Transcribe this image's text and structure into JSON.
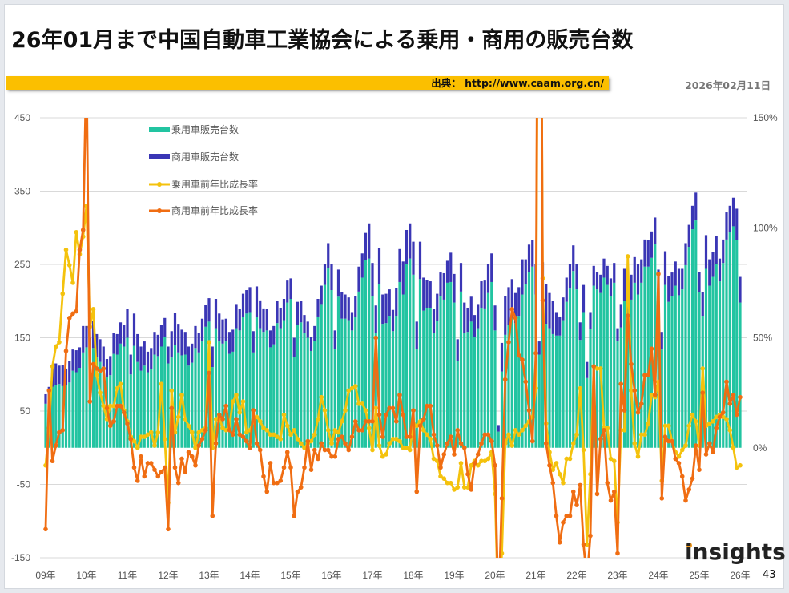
{
  "header": {
    "title": "26年01月まで中国自動車工業協会による乗用・商用の販売台数",
    "source": "出典： http://www.caam.org.cn/",
    "date": "2026年02月11日"
  },
  "footer": {
    "logo_text": "insights",
    "page_number": "43"
  },
  "colors": {
    "passenger_bar": "#22c4a1",
    "commercial_bar": "#3a36b5",
    "passenger_line": "#f4c20d",
    "commercial_line": "#f06d12",
    "source_bar": "#fbbf00"
  },
  "chart_data": {
    "type": "bar+line",
    "stacked_bars": true,
    "grid": true,
    "legend_position": "top-left",
    "legend": [
      "乗用車販売台数",
      "商用車販売台数",
      "乗用車前年比成長率",
      "商用車前年比成長率"
    ],
    "y_left": {
      "range": [
        -150,
        450
      ],
      "ticks": [
        "450",
        "350",
        "250",
        "150",
        "50",
        "-50",
        "-150"
      ]
    },
    "y_right": {
      "range_percent": [
        -50,
        150
      ],
      "ticks": [
        "150%",
        "100%",
        "50%",
        "0%"
      ]
    },
    "years": [
      {
        "label": "09年",
        "passenger": [
          60,
          70,
          83,
          86,
          87,
          84,
          86,
          89,
          105,
          103,
          109,
          130
        ],
        "commercial": [
          13,
          13,
          27,
          29,
          25,
          29,
          22,
          29,
          29,
          30,
          28,
          36
        ],
        "passenger_yoy": [
          -8,
          9,
          37,
          46,
          48,
          70,
          90,
          83,
          75,
          98,
          88,
          96
        ],
        "commercial_yoy": [
          -37,
          26,
          -6,
          1,
          7,
          8,
          44,
          59,
          61,
          62,
          90,
          99
        ]
      },
      {
        "label": "10年",
        "passenger": [
          137,
          117,
          136,
          123,
          117,
          108,
          97,
          99,
          128,
          127,
          142,
          138
        ],
        "commercial": [
          29,
          33,
          37,
          32,
          31,
          30,
          24,
          26,
          29,
          28,
          29,
          29
        ],
        "passenger_yoy": [
          110,
          55,
          63,
          33,
          25,
          19,
          13,
          19,
          19,
          27,
          29,
          17
        ],
        "commercial_yoy": [
          175,
          21,
          38,
          36,
          35,
          36,
          18,
          10,
          12,
          19,
          19,
          16
        ]
      },
      {
        "label": "11年",
        "passenger": [
          150,
          100,
          139,
          117,
          105,
          112,
          103,
          107,
          127,
          125,
          138,
          151
        ],
        "commercial": [
          39,
          27,
          44,
          38,
          33,
          33,
          28,
          29,
          31,
          29,
          30,
          26
        ],
        "passenger_yoy": [
          12,
          5,
          3,
          0,
          5,
          5,
          6,
          7,
          1,
          7,
          29,
          4
        ],
        "commercial_yoy": [
          11,
          4,
          -9,
          -15,
          -4,
          -13,
          -7,
          -7,
          -10,
          -13,
          -11,
          -9
        ]
      },
      {
        "label": "12年",
        "passenger": [
          115,
          123,
          140,
          130,
          126,
          127,
          112,
          116,
          136,
          130,
          145,
          165
        ],
        "commercial": [
          23,
          36,
          44,
          39,
          35,
          31,
          26,
          26,
          30,
          27,
          31,
          30
        ],
        "passenger_yoy": [
          -25,
          26,
          7,
          14,
          24,
          13,
          10,
          7,
          0,
          7,
          8,
          9
        ],
        "commercial_yoy": [
          -37,
          18,
          -9,
          -16,
          -5,
          -11,
          -2,
          -4,
          -8,
          1,
          4,
          8
        ]
      },
      {
        "label": "13年",
        "passenger": [
          172,
          110,
          163,
          145,
          142,
          145,
          128,
          131,
          163,
          160,
          178,
          183
        ],
        "commercial": [
          32,
          28,
          40,
          38,
          33,
          31,
          30,
          30,
          33,
          29,
          32,
          32
        ],
        "passenger_yoy": [
          48,
          0,
          13,
          14,
          9,
          8,
          10,
          21,
          24,
          16,
          21,
          7
        ],
        "commercial_yoy": [
          34,
          -31,
          2,
          15,
          13,
          19,
          8,
          6,
          13,
          6,
          5,
          3
        ]
      },
      {
        "label": "14年",
        "passenger": [
          185,
          130,
          178,
          163,
          158,
          160,
          137,
          141,
          170,
          163,
          174,
          198
        ],
        "commercial": [
          34,
          29,
          42,
          38,
          32,
          29,
          23,
          25,
          30,
          28,
          29,
          30
        ],
        "passenger_yoy": [
          8,
          12,
          14,
          12,
          9,
          8,
          6,
          6,
          5,
          4,
          15,
          10
        ],
        "commercial_yoy": [
          0,
          17,
          2,
          -1,
          -13,
          -20,
          -7,
          -16,
          -16,
          -15,
          -9,
          -2
        ]
      },
      {
        "label": "15年",
        "passenger": [
          203,
          124,
          167,
          171,
          157,
          150,
          132,
          146,
          179,
          196,
          222,
          245
        ],
        "commercial": [
          28,
          26,
          32,
          29,
          24,
          22,
          19,
          20,
          24,
          25,
          28,
          34
        ],
        "passenger_yoy": [
          6,
          8,
          4,
          2,
          0,
          2,
          3,
          6,
          13,
          23,
          17,
          8
        ],
        "commercial_yoy": [
          -9,
          -31,
          -20,
          -18,
          -9,
          3,
          -10,
          -1,
          -5,
          2,
          -1,
          -1
        ]
      },
      {
        "label": "16年",
        "passenger": [
          215,
          135,
          206,
          176,
          176,
          174,
          160,
          178,
          213,
          232,
          256,
          258
        ],
        "commercial": [
          36,
          25,
          37,
          36,
          33,
          31,
          25,
          29,
          34,
          33,
          37,
          48
        ],
        "passenger_yoy": [
          2,
          8,
          7,
          12,
          17,
          26,
          27,
          28,
          20,
          20,
          17,
          9
        ],
        "commercial_yoy": [
          -4,
          -4,
          4,
          5,
          2,
          -1,
          5,
          12,
          8,
          8,
          12,
          12
        ]
      },
      {
        "label": "17年",
        "passenger": [
          207,
          156,
          223,
          169,
          170,
          180,
          159,
          180,
          226,
          209,
          250,
          258
        ],
        "commercial": [
          45,
          38,
          49,
          40,
          40,
          36,
          29,
          38,
          45,
          45,
          47,
          48
        ],
        "passenger_yoy": [
          -1,
          18,
          1,
          -4,
          -3,
          2,
          4,
          4,
          3,
          0,
          0,
          -1
        ],
        "commercial_yoy": [
          12,
          50,
          15,
          5,
          15,
          18,
          18,
          12,
          24,
          15,
          5,
          5
        ]
      },
      {
        "label": "18年",
        "passenger": [
          236,
          135,
          230,
          187,
          191,
          191,
          157,
          173,
          207,
          202,
          225,
          226
        ],
        "commercial": [
          45,
          37,
          51,
          45,
          38,
          36,
          32,
          37,
          32,
          36,
          30,
          40
        ],
        "passenger_yoy": [
          11,
          10,
          12,
          8,
          6,
          4,
          -5,
          -6,
          -13,
          -14,
          -16,
          -16
        ],
        "commercial_yoy": [
          17,
          -20,
          10,
          13,
          19,
          19,
          6,
          1,
          -9,
          -3,
          2,
          5
        ]
      },
      {
        "label": "19年",
        "passenger": [
          198,
          118,
          213,
          157,
          158,
          172,
          151,
          163,
          191,
          190,
          211,
          226
        ],
        "commercial": [
          39,
          30,
          39,
          41,
          33,
          34,
          30,
          33,
          36,
          38,
          39,
          39
        ],
        "passenger_yoy": [
          -19,
          -18,
          -7,
          -18,
          -18,
          -8,
          -6,
          -8,
          -6,
          -6,
          -5,
          -2
        ],
        "commercial_yoy": [
          -3,
          8,
          2,
          0,
          -12,
          -19,
          -7,
          -3,
          2,
          6,
          6,
          3
        ]
      },
      {
        "label": "20年",
        "passenger": [
          160,
          22,
          104,
          154,
          167,
          177,
          170,
          180,
          209,
          223,
          240,
          247
        ],
        "commercial": [
          34,
          9,
          39,
          53,
          52,
          53,
          41,
          39,
          48,
          34,
          37,
          36
        ],
        "passenger_yoy": [
          -21,
          -78,
          -48,
          2,
          6,
          1,
          8,
          6,
          8,
          10,
          12,
          14
        ],
        "commercial_yoy": [
          -8,
          -75,
          -23,
          31,
          48,
          63,
          59,
          42,
          40,
          30,
          17,
          3
        ]
      },
      {
        "label": "21年",
        "passenger": [
          209,
          127,
          201,
          169,
          163,
          155,
          153,
          153,
          174,
          199,
          217,
          241
        ],
        "commercial": [
          42,
          18,
          52,
          54,
          48,
          45,
          32,
          26,
          31,
          33,
          33,
          35
        ],
        "passenger_yoy": [
          27,
          378,
          77,
          11,
          -2,
          -10,
          -7,
          -12,
          -16,
          -5,
          -5,
          2
        ],
        "commercial_yoy": [
          43,
          400,
          67,
          2,
          -8,
          -16,
          -31,
          -43,
          -34,
          -31,
          -31,
          -20
        ]
      },
      {
        "label": "22年",
        "passenger": [
          216,
          147,
          185,
          95,
          162,
          221,
          216,
          211,
          232,
          222,
          207,
          225
        ],
        "commercial": [
          35,
          24,
          37,
          22,
          23,
          27,
          24,
          25,
          26,
          26,
          24,
          27
        ],
        "passenger_yoy": [
          6,
          27,
          -1,
          -44,
          -12,
          37,
          36,
          36,
          9,
          9,
          -5,
          -6
        ],
        "commercial_yoy": [
          -26,
          -17,
          -44,
          -60,
          -40,
          37,
          -21,
          4,
          8,
          -16,
          -24,
          -20
        ]
      },
      {
        "label": "23年",
        "passenger": [
          145,
          164,
          200,
          180,
          202,
          225,
          209,
          225,
          247,
          247,
          259,
          278
        ],
        "commercial": [
          18,
          32,
          44,
          36,
          34,
          35,
          42,
          32,
          37,
          36,
          36,
          36
        ],
        "passenger_yoy": [
          -34,
          8,
          8,
          87,
          26,
          2,
          -4,
          6,
          6,
          11,
          24,
          23
        ],
        "commercial_yoy": [
          -48,
          29,
          17,
          60,
          38,
          26,
          16,
          20,
          33,
          33,
          45,
          24
        ]
      },
      {
        "label": "24年",
        "passenger": [
          205,
          134,
          222,
          199,
          207,
          221,
          208,
          216,
          249,
          274,
          298,
          310
        ],
        "commercial": [
          38,
          24,
          46,
          35,
          32,
          33,
          36,
          28,
          30,
          30,
          32,
          38
        ],
        "passenger_yoy": [
          30,
          -15,
          10,
          10,
          3,
          -2,
          -4,
          -1,
          1,
          10,
          15,
          12
        ],
        "commercial_yoy": [
          79,
          -23,
          5,
          3,
          3,
          -5,
          -7,
          -13,
          -24,
          -19,
          -14,
          1
        ]
      },
      {
        "label": "25年",
        "passenger": [
          212,
          180,
          244,
          221,
          233,
          251,
          227,
          252,
          284,
          294,
          302,
          283
        ],
        "commercial": [
          28,
          32,
          46,
          36,
          34,
          38,
          31,
          32,
          37,
          36,
          39,
          43
        ],
        "passenger_yoy": [
          1,
          36,
          10,
          11,
          12,
          14,
          15,
          14,
          13,
          8,
          0,
          -9
        ],
        "commercial_yoy": [
          -10,
          25,
          -3,
          2,
          -2,
          9,
          14,
          16,
          30,
          20,
          24,
          15
        ]
      },
      {
        "label": "26年",
        "passenger": [
          198
        ],
        "commercial": [
          35
        ],
        "passenger_yoy": [
          -8
        ],
        "commercial_yoy": [
          23
        ]
      }
    ]
  }
}
